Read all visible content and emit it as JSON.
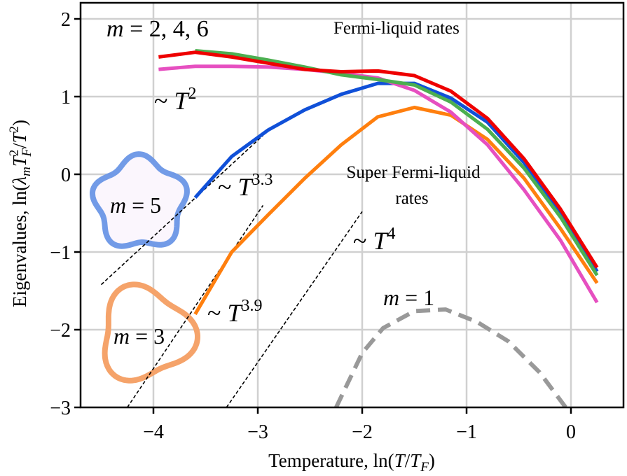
{
  "chart_data": {
    "type": "line",
    "title": "",
    "xlabel": "Temperature, ln(T/T_F)",
    "ylabel": "Eigenvalues, ln(λ_m T_F^2/T^2)",
    "xlim": [
      -4.7,
      0.5
    ],
    "ylim": [
      -3,
      2.2
    ],
    "xticks": [
      -4,
      -3,
      -2,
      -1,
      0
    ],
    "yticks": [
      2,
      1,
      0,
      -1,
      -2,
      -3
    ],
    "xtick_labels": [
      "−4",
      "−3",
      "−2",
      "−1",
      "0"
    ],
    "ytick_labels": [
      "2",
      "1",
      "0",
      "−1",
      "−2",
      "−3"
    ],
    "grid": true,
    "legend": "none (inline annotations)",
    "series": [
      {
        "name": "m = 3",
        "color": "#ff7f0e",
        "style": "solid",
        "x": [
          -3.6,
          -3.25,
          -2.9,
          -2.55,
          -2.2,
          -1.85,
          -1.5,
          -1.15,
          -0.8,
          -0.45,
          -0.1,
          0.25
        ],
        "y": [
          -1.8,
          -1.0,
          -0.52,
          -0.05,
          0.38,
          0.74,
          0.86,
          0.76,
          0.45,
          -0.05,
          -0.7,
          -1.4
        ]
      },
      {
        "name": "m = 5",
        "color": "#1050d8",
        "style": "solid",
        "x": [
          -3.6,
          -3.25,
          -2.9,
          -2.55,
          -2.2,
          -1.85,
          -1.5,
          -1.15,
          -0.8,
          -0.45,
          -0.1,
          0.25
        ],
        "y": [
          -0.3,
          0.23,
          0.57,
          0.83,
          1.03,
          1.17,
          1.17,
          0.98,
          0.67,
          0.15,
          -0.48,
          -1.25
        ]
      },
      {
        "name": "m = 2",
        "color": "#e64fc0",
        "style": "solid",
        "x": [
          -3.95,
          -3.6,
          -3.25,
          -2.9,
          -2.55,
          -2.2,
          -1.85,
          -1.5,
          -1.15,
          -0.8,
          -0.45,
          -0.1,
          0.25
        ],
        "y": [
          1.35,
          1.39,
          1.39,
          1.38,
          1.35,
          1.3,
          1.24,
          1.08,
          0.8,
          0.38,
          -0.2,
          -0.85,
          -1.65
        ]
      },
      {
        "name": "m = 4",
        "color": "#4caf50",
        "style": "solid",
        "x": [
          -3.6,
          -3.25,
          -2.9,
          -2.55,
          -2.2,
          -1.85,
          -1.5,
          -1.15,
          -0.8,
          -0.45,
          -0.1,
          0.25
        ],
        "y": [
          1.59,
          1.55,
          1.47,
          1.38,
          1.28,
          1.22,
          1.15,
          0.93,
          0.58,
          0.08,
          -0.55,
          -1.3
        ]
      },
      {
        "name": "m = 6",
        "color": "#ee0000",
        "style": "solid",
        "x": [
          -3.95,
          -3.6,
          -3.25,
          -2.9,
          -2.55,
          -2.2,
          -1.85,
          -1.5,
          -1.15,
          -0.8,
          -0.45,
          -0.1,
          0.25
        ],
        "y": [
          1.51,
          1.57,
          1.51,
          1.43,
          1.35,
          1.32,
          1.33,
          1.27,
          1.07,
          0.72,
          0.2,
          -0.45,
          -1.2
        ]
      },
      {
        "name": "m = 1",
        "color": "#999999",
        "style": "dashed",
        "x": [
          -2.25,
          -2.0,
          -1.8,
          -1.5,
          -1.2,
          -0.9,
          -0.6,
          -0.3,
          -0.05
        ],
        "y": [
          -3.0,
          -2.3,
          -1.98,
          -1.76,
          -1.74,
          -1.9,
          -2.15,
          -2.55,
          -3.0
        ]
      }
    ],
    "reference_lines": [
      {
        "label": "~ T^3.3",
        "x": [
          -4.5,
          -2.95
        ],
        "y": [
          -1.42,
          0.5
        ]
      },
      {
        "label": "~ T^3.9",
        "x": [
          -4.25,
          -2.95
        ],
        "y": [
          -3.0,
          -0.4
        ]
      },
      {
        "label": "~ T^4",
        "x": [
          -3.3,
          -2.0
        ],
        "y": [
          -3.0,
          -0.48
        ]
      }
    ],
    "annotations": [
      {
        "text": "m = 2, 4, 6"
      },
      {
        "text": "Fermi-liquid rates"
      },
      {
        "text": "~ T^2"
      },
      {
        "text": "~ T^3.3"
      },
      {
        "text": "Super Fermi-liquid rates"
      },
      {
        "text": "~ T^4"
      },
      {
        "text": "~ T^3.9"
      },
      {
        "text": "m = 5"
      },
      {
        "text": "m = 3"
      },
      {
        "text": "m = 1"
      }
    ]
  },
  "labels": {
    "xlabel_prefix": "Temperature, ln(",
    "xlabel_T": "T",
    "xlabel_slash": "/",
    "xlabel_TF": "T",
    "xlabel_F": "F",
    "xlabel_close": ")",
    "ylabel_prefix": "Eigenvalues, ln(",
    "ylabel_lambda": "λ",
    "ylabel_m": "m",
    "ylabel_T": "T",
    "ylabel_F": "F",
    "ylabel_2a": "2",
    "ylabel_slash": "/",
    "ylabel_T2": "T",
    "ylabel_2b": "2",
    "ylabel_close": ")",
    "ann_m246_m": "m",
    "ann_m246_rest": " = 2, 4, 6",
    "ann_fermi": "Fermi-liquid rates",
    "ann_super1": "Super Fermi-liquid",
    "ann_super2": "rates",
    "ann_tilde": "~ ",
    "ann_T": "T",
    "ann_exp2": "2",
    "ann_exp33": "3.3",
    "ann_exp39": "3.9",
    "ann_exp4": "4",
    "ann_m": "m",
    "ann_eq5": " = 5",
    "ann_eq3": " = 3",
    "ann_eq1": " = 1"
  },
  "colors": {
    "grid": "#d0d0d0",
    "star5_stroke": "#6a96e6",
    "star5_fill": "#fbf6fd",
    "tri3_stroke": "#f5a36a"
  }
}
